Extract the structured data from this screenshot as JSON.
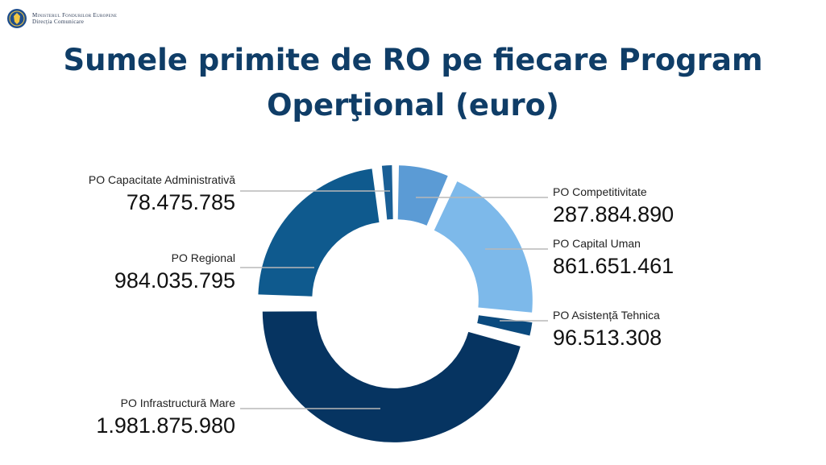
{
  "header": {
    "ministry_line1": "Ministerul Fondurilor Europene",
    "ministry_line2": "Direcția Comunicare"
  },
  "title": "Sumele primite de RO pe fiecare Program Operţional (euro)",
  "chart_data": {
    "type": "pie",
    "variant": "donut-exploded",
    "title": "Sumele primite de RO pe fiecare Program Operţional (euro)",
    "slices": [
      {
        "label": "PO Competitivitate",
        "value_text": "287.884.890",
        "value": 287884890,
        "color": "#5b9bd5"
      },
      {
        "label": "PO Capital Uman",
        "value_text": "861.651.461",
        "value": 861651461,
        "color": "#7db9ea"
      },
      {
        "label": "PO Asistență Tehnica",
        "value_text": "96.513.308",
        "value": 96513308,
        "color": "#0b4a7e"
      },
      {
        "label": "PO Infrastructură Mare",
        "value_text": "1.981.875.980",
        "value": 1981875980,
        "color": "#063461"
      },
      {
        "label": "PO Regional",
        "value_text": "984.035.795",
        "value": 984035795,
        "color": "#0f5a8e"
      },
      {
        "label": "PO Capacitate Administrativă",
        "value_text": "78.475.785",
        "value": 78475785,
        "color": "#1a5f96"
      }
    ]
  }
}
